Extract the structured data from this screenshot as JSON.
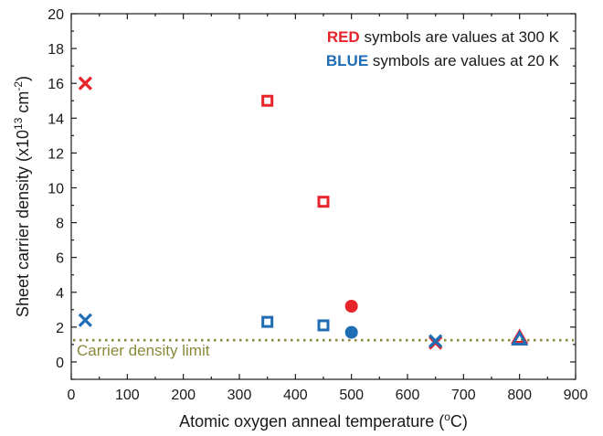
{
  "chart_data": {
    "type": "scatter",
    "xlabel": "Atomic oxygen anneal temperature (°C)",
    "xlabel_parts": {
      "main": "Atomic oxygen anneal temperature (",
      "sup": "o",
      "unit": "C)"
    },
    "ylabel": "Sheet carrier density (x10^13 cm^-2)",
    "ylabel_parts": {
      "main": "Sheet carrier density (x10",
      "sup1": "13",
      "mid": " cm",
      "sup2": "-2",
      "end": ")"
    },
    "xlim": [
      0,
      900
    ],
    "ylim": [
      -1,
      20
    ],
    "xticks": [
      0,
      100,
      200,
      300,
      400,
      500,
      600,
      700,
      800,
      900
    ],
    "yticks": [
      0,
      2,
      4,
      6,
      8,
      10,
      12,
      14,
      16,
      18,
      20
    ],
    "legend": {
      "placement": "top-right",
      "red_key": "RED",
      "red_rest": " symbols are values at 300 K",
      "blue_key": "BLUE",
      "blue_rest": " symbols are values at 20 K"
    },
    "reference_line": {
      "y": 1.25,
      "label": "Carrier density limit",
      "color": "#8a8a3a",
      "style": "dotted"
    },
    "colors": {
      "red": "#e8242b",
      "blue": "#1f6db5"
    },
    "series": [
      {
        "color": "red",
        "points": [
          {
            "x": 25,
            "y": 16.0,
            "marker": "x"
          },
          {
            "x": 350,
            "y": 15.0,
            "marker": "square"
          },
          {
            "x": 450,
            "y": 9.2,
            "marker": "square"
          },
          {
            "x": 500,
            "y": 3.2,
            "marker": "circle"
          },
          {
            "x": 650,
            "y": 1.1,
            "marker": "x"
          },
          {
            "x": 800,
            "y": 1.4,
            "marker": "triangle"
          }
        ]
      },
      {
        "color": "blue",
        "points": [
          {
            "x": 25,
            "y": 2.4,
            "marker": "x"
          },
          {
            "x": 350,
            "y": 2.3,
            "marker": "square"
          },
          {
            "x": 450,
            "y": 2.1,
            "marker": "square"
          },
          {
            "x": 500,
            "y": 1.7,
            "marker": "circle"
          },
          {
            "x": 650,
            "y": 1.2,
            "marker": "x"
          },
          {
            "x": 800,
            "y": 1.3,
            "marker": "triangle"
          }
        ]
      }
    ]
  }
}
